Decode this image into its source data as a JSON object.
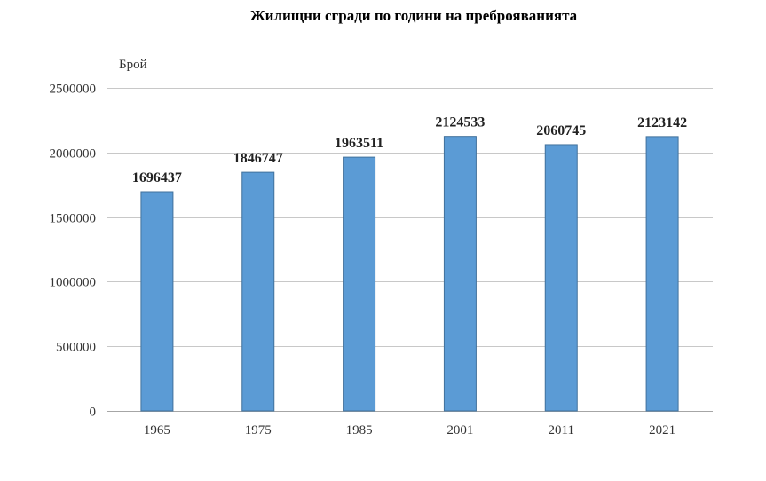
{
  "chart_data": {
    "type": "bar",
    "title": "Жилищни сгради по години на преброяванията",
    "xlabel": "",
    "ylabel": "Брой",
    "categories": [
      "1965",
      "1975",
      "1985",
      "2001",
      "2011",
      "2021"
    ],
    "values": [
      1696437,
      1846747,
      1963511,
      2124533,
      2060745,
      2123142
    ],
    "data_labels": [
      "1696437",
      "1846747",
      "1963511",
      "2124533",
      "2060745",
      "2123142"
    ],
    "ylim": [
      0,
      2500000
    ],
    "y_ticks": [
      0,
      500000,
      1000000,
      1500000,
      2000000,
      2500000
    ],
    "y_tick_labels": [
      "0",
      "500000",
      "1000000",
      "1500000",
      "2000000",
      "2500000"
    ],
    "grid": true,
    "legend": "none",
    "bar_color": "#5b9bd5",
    "bar_edge_color": "#41719c"
  }
}
